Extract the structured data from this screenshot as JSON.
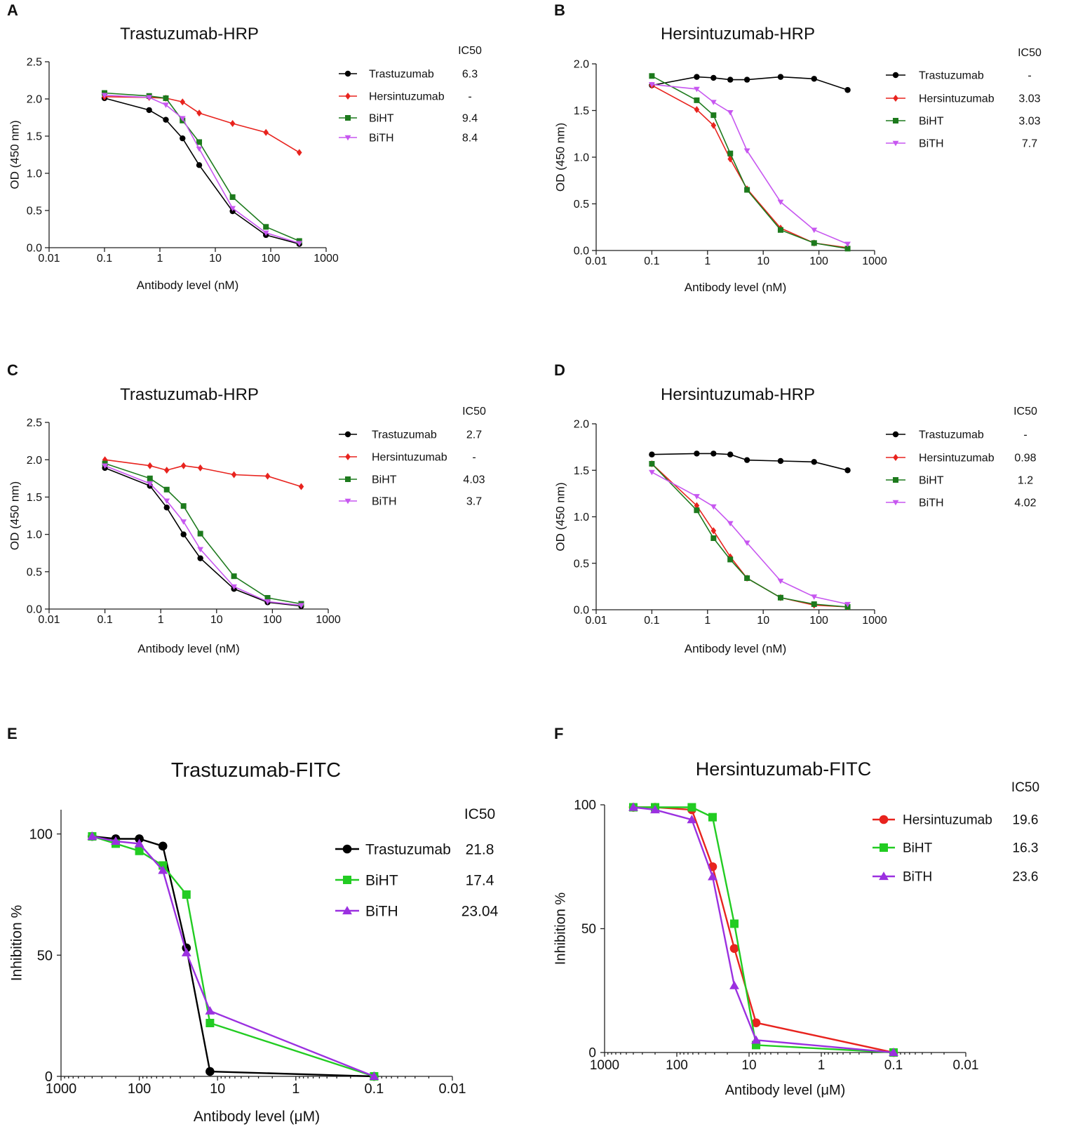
{
  "figure": {
    "panels": [
      "A",
      "B",
      "C",
      "D",
      "E",
      "F"
    ]
  },
  "chart_data": [
    {
      "panel_label": "A",
      "type": "line",
      "title": "Trastuzumab-HRP",
      "xlabel": "Antibody level (nM)",
      "ylabel": "OD (450 nm)",
      "xscale": "log",
      "xlim": [
        0.01,
        1000
      ],
      "ylim": [
        0,
        2.5
      ],
      "xticks": [
        0.01,
        0.1,
        1,
        10,
        100,
        1000
      ],
      "xtick_labels": [
        "0.01",
        "0.1",
        "1",
        "10",
        "100",
        "1000"
      ],
      "yticks": [
        0,
        0.5,
        1,
        1.5,
        2,
        2.5
      ],
      "ytick_labels": [
        "0.0",
        "0.5",
        "1.0",
        "1.5",
        "2.0",
        "2.5"
      ],
      "ic50_header": "IC50",
      "x": [
        0.1,
        0.64,
        1.28,
        2.56,
        5.12,
        20.5,
        82,
        328
      ],
      "series": [
        {
          "name": "Trastuzumab",
          "ic50": "6.3",
          "color": "#000000",
          "marker": "circle",
          "values": [
            2.01,
            1.85,
            1.72,
            1.47,
            1.11,
            0.49,
            0.17,
            0.05
          ]
        },
        {
          "name": "Hersintuzumab",
          "ic50": "-",
          "color": "#e8231e",
          "marker": "diamond",
          "values": [
            2.03,
            2.02,
            2.01,
            1.96,
            1.81,
            1.67,
            1.55,
            1.28
          ]
        },
        {
          "name": "BiHT",
          "ic50": "9.4",
          "color": "#1d7a1d",
          "marker": "square",
          "values": [
            2.08,
            2.04,
            2.01,
            1.71,
            1.42,
            0.68,
            0.28,
            0.09
          ]
        },
        {
          "name": "BiTH",
          "ic50": "8.4",
          "color": "#c757f0",
          "marker": "triangle-down",
          "values": [
            2.05,
            2.02,
            1.92,
            1.74,
            1.33,
            0.53,
            0.2,
            0.06
          ]
        }
      ]
    },
    {
      "panel_label": "B",
      "type": "line",
      "title": "Hersintuzumab-HRP",
      "xlabel": "Antibody level (nM)",
      "ylabel": "OD (450 nm)",
      "xscale": "log",
      "xlim": [
        0.01,
        1000
      ],
      "ylim": [
        0,
        2.0
      ],
      "xticks": [
        0.01,
        0.1,
        1,
        10,
        100,
        1000
      ],
      "xtick_labels": [
        "0.01",
        "0.1",
        "1",
        "10",
        "100",
        "1000"
      ],
      "yticks": [
        0,
        0.5,
        1,
        1.5,
        2
      ],
      "ytick_labels": [
        "0.0",
        "0.5",
        "1.0",
        "1.5",
        "2.0"
      ],
      "ic50_header": "IC50",
      "x": [
        0.1,
        0.64,
        1.28,
        2.56,
        5.12,
        20.5,
        82,
        328
      ],
      "series": [
        {
          "name": "Trastuzumab",
          "ic50": "-",
          "color": "#000000",
          "marker": "circle",
          "values": [
            1.77,
            1.86,
            1.85,
            1.83,
            1.83,
            1.86,
            1.84,
            1.72
          ]
        },
        {
          "name": "Hersintuzumab",
          "ic50": "3.03",
          "color": "#e8231e",
          "marker": "diamond",
          "values": [
            1.77,
            1.51,
            1.34,
            0.98,
            0.66,
            0.24,
            0.08,
            0.03
          ]
        },
        {
          "name": "BiHT",
          "ic50": "3.03",
          "color": "#1d7a1d",
          "marker": "square",
          "values": [
            1.87,
            1.61,
            1.45,
            1.04,
            0.65,
            0.22,
            0.08,
            0.02
          ]
        },
        {
          "name": "BiTH",
          "ic50": "7.7",
          "color": "#c757f0",
          "marker": "triangle-down",
          "values": [
            1.78,
            1.73,
            1.59,
            1.48,
            1.07,
            0.52,
            0.22,
            0.07
          ]
        }
      ]
    },
    {
      "panel_label": "C",
      "type": "line",
      "title": "Trastuzumab-HRP",
      "xlabel": "Antibody level (nM)",
      "ylabel": "OD (450 nm)",
      "xscale": "log",
      "xlim": [
        0.01,
        1000
      ],
      "ylim": [
        0,
        2.5
      ],
      "xticks": [
        0.01,
        0.1,
        1,
        10,
        100,
        1000
      ],
      "xtick_labels": [
        "0.01",
        "0.1",
        "1",
        "10",
        "100",
        "1000"
      ],
      "yticks": [
        0,
        0.5,
        1,
        1.5,
        2,
        2.5
      ],
      "ytick_labels": [
        "0.0",
        "0.5",
        "1.0",
        "1.5",
        "2.0",
        "2.5"
      ],
      "ic50_header": "IC50",
      "x": [
        0.1,
        0.64,
        1.28,
        2.56,
        5.12,
        20.5,
        82,
        328
      ],
      "series": [
        {
          "name": "Trastuzumab",
          "ic50": "2.7",
          "color": "#000000",
          "marker": "circle",
          "values": [
            1.89,
            1.65,
            1.36,
            1.0,
            0.68,
            0.27,
            0.09,
            0.04
          ]
        },
        {
          "name": "Hersintuzumab",
          "ic50": "-",
          "color": "#e8231e",
          "marker": "diamond",
          "values": [
            2.0,
            1.92,
            1.86,
            1.92,
            1.89,
            1.8,
            1.78,
            1.64
          ]
        },
        {
          "name": "BiHT",
          "ic50": "4.03",
          "color": "#1d7a1d",
          "marker": "square",
          "values": [
            1.95,
            1.75,
            1.6,
            1.38,
            1.01,
            0.44,
            0.15,
            0.07
          ]
        },
        {
          "name": "BiTH",
          "ic50": "3.7",
          "color": "#c757f0",
          "marker": "triangle-down",
          "values": [
            1.92,
            1.68,
            1.45,
            1.17,
            0.8,
            0.3,
            0.1,
            0.05
          ]
        }
      ]
    },
    {
      "panel_label": "D",
      "type": "line",
      "title": "Hersintuzumab-HRP",
      "xlabel": "Antibody level (nM)",
      "ylabel": "OD (450 nm)",
      "xscale": "log",
      "xlim": [
        0.01,
        1000
      ],
      "ylim": [
        0,
        2.0
      ],
      "xticks": [
        0.01,
        0.1,
        1,
        10,
        100,
        1000
      ],
      "xtick_labels": [
        "0.01",
        "0.1",
        "1",
        "10",
        "100",
        "1000"
      ],
      "yticks": [
        0,
        0.5,
        1,
        1.5,
        2
      ],
      "ytick_labels": [
        "0.0",
        "0.5",
        "1.0",
        "1.5",
        "2.0"
      ],
      "ic50_header": "IC50",
      "x": [
        0.1,
        0.64,
        1.28,
        2.56,
        5.12,
        20.5,
        82,
        328
      ],
      "series": [
        {
          "name": "Trastuzumab",
          "ic50": "-",
          "color": "#000000",
          "marker": "circle",
          "values": [
            1.67,
            1.68,
            1.68,
            1.67,
            1.61,
            1.6,
            1.59,
            1.5
          ]
        },
        {
          "name": "Hersintuzumab",
          "ic50": "0.98",
          "color": "#e8231e",
          "marker": "diamond",
          "values": [
            1.57,
            1.12,
            0.85,
            0.57,
            0.34,
            0.13,
            0.05,
            0.03
          ]
        },
        {
          "name": "BiHT",
          "ic50": "1.2",
          "color": "#1d7a1d",
          "marker": "square",
          "values": [
            1.57,
            1.07,
            0.77,
            0.54,
            0.34,
            0.13,
            0.06,
            0.03
          ]
        },
        {
          "name": "BiTH",
          "ic50": "4.02",
          "color": "#c757f0",
          "marker": "triangle-down",
          "values": [
            1.48,
            1.22,
            1.11,
            0.93,
            0.72,
            0.31,
            0.14,
            0.06
          ]
        }
      ]
    },
    {
      "panel_label": "E",
      "type": "line",
      "title": "Trastuzumab-FITC",
      "xlabel": "Antibody level (μM)",
      "ylabel": "Inhibition %",
      "xscale": "log",
      "xreversed": true,
      "xlim": [
        1000,
        0.01
      ],
      "ylim": [
        0,
        110
      ],
      "xticks": [
        1000,
        100,
        10,
        1,
        0.1,
        0.01
      ],
      "xtick_labels": [
        "1000",
        "100",
        "10",
        "1",
        "0.1",
        "0.01"
      ],
      "yticks": [
        0,
        50,
        100
      ],
      "ytick_labels": [
        "0",
        "50",
        "100"
      ],
      "ic50_header": "IC50",
      "series": [
        {
          "name": "Trastuzumab",
          "ic50": "21.8",
          "color": "#000000",
          "marker": "circle",
          "x": [
            400,
            200,
            100,
            50,
            25,
            12.5,
            0.1
          ],
          "values": [
            99,
            98,
            98,
            95,
            53,
            2,
            0
          ]
        },
        {
          "name": "BiHT",
          "ic50": "17.4",
          "color": "#22cc22",
          "marker": "square",
          "x": [
            400,
            200,
            100,
            50,
            25,
            12.5,
            0.1
          ],
          "values": [
            99,
            96,
            93,
            87,
            75,
            22,
            0
          ]
        },
        {
          "name": "BiTH",
          "ic50": "23.04",
          "color": "#9b30e0",
          "marker": "triangle-up",
          "x": [
            400,
            200,
            100,
            50,
            25,
            12.5,
            0.1
          ],
          "values": [
            99,
            97,
            96,
            85,
            51,
            27,
            0
          ]
        }
      ]
    },
    {
      "panel_label": "F",
      "type": "line",
      "title": "Hersintuzumab-FITC",
      "xlabel": "Antibody level (μM)",
      "ylabel": "Inhibition %",
      "xscale": "log",
      "xreversed": true,
      "xlim": [
        1000,
        0.01
      ],
      "ylim": [
        0,
        100
      ],
      "xticks": [
        1000,
        100,
        10,
        1,
        0.1,
        0.01
      ],
      "xtick_labels": [
        "1000",
        "100",
        "10",
        "1",
        "0.1",
        "0.01"
      ],
      "yticks": [
        0,
        50,
        100
      ],
      "ytick_labels": [
        "0",
        "50",
        "100"
      ],
      "ic50_header": "IC50",
      "series": [
        {
          "name": "Hersintuzumab",
          "ic50": "19.6",
          "color": "#e8231e",
          "marker": "circle",
          "x": [
            400,
            200,
            62,
            32,
            16,
            8,
            0.1
          ],
          "values": [
            99,
            99,
            98,
            75,
            42,
            12,
            0
          ]
        },
        {
          "name": "BiHT",
          "ic50": "16.3",
          "color": "#22cc22",
          "marker": "square",
          "x": [
            400,
            200,
            62,
            32,
            16,
            8,
            0.1
          ],
          "values": [
            99,
            99,
            99,
            95,
            52,
            3,
            0
          ]
        },
        {
          "name": "BiTH",
          "ic50": "23.6",
          "color": "#9b30e0",
          "marker": "triangle-up",
          "x": [
            400,
            200,
            62,
            32,
            16,
            8,
            0.1
          ],
          "values": [
            99,
            98,
            94,
            71,
            27,
            5,
            0
          ]
        }
      ]
    }
  ]
}
